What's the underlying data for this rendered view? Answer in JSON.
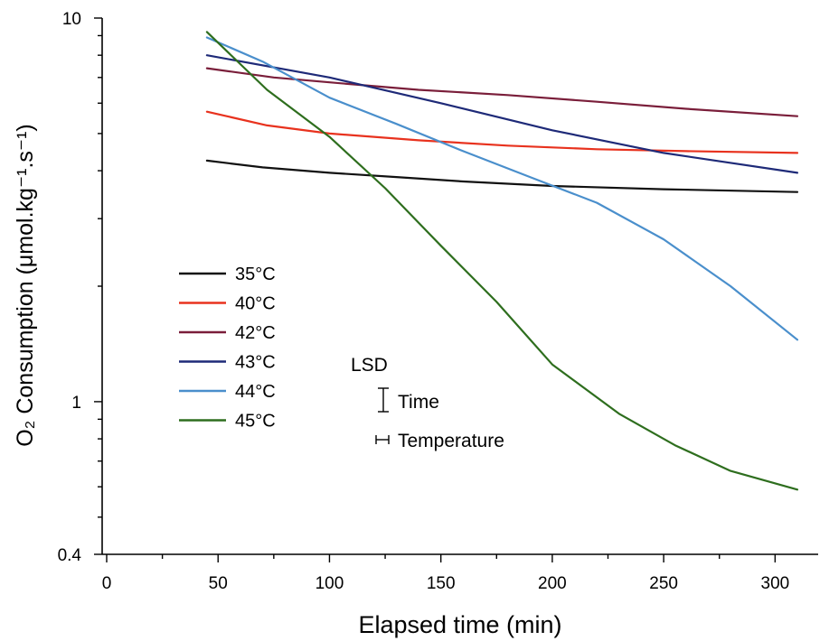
{
  "chart_data": {
    "type": "line",
    "xlabel": "Elapsed time (min)",
    "ylabel": "O₂ Consumption (μmol.kg⁻¹.s⁻¹)",
    "xlim": [
      0,
      320
    ],
    "ylim": [
      0.4,
      10
    ],
    "yscale": "log",
    "x_ticks": [
      0,
      50,
      100,
      150,
      200,
      250,
      300
    ],
    "y_ticks": [
      {
        "value": 0.4,
        "label": "0.4"
      },
      {
        "value": 1,
        "label": "1"
      },
      {
        "value": 10,
        "label": "10"
      }
    ],
    "legend_placement": "left-middle",
    "series": [
      {
        "name": "35°C",
        "color": "#111111",
        "points": [
          [
            45,
            4.25
          ],
          [
            70,
            4.08
          ],
          [
            100,
            3.95
          ],
          [
            130,
            3.85
          ],
          [
            160,
            3.75
          ],
          [
            200,
            3.65
          ],
          [
            250,
            3.58
          ],
          [
            310,
            3.52
          ]
        ]
      },
      {
        "name": "40°C",
        "color": "#e8321e",
        "points": [
          [
            45,
            5.7
          ],
          [
            72,
            5.25
          ],
          [
            100,
            5.0
          ],
          [
            140,
            4.8
          ],
          [
            180,
            4.65
          ],
          [
            220,
            4.55
          ],
          [
            260,
            4.5
          ],
          [
            310,
            4.45
          ]
        ]
      },
      {
        "name": "42°C",
        "color": "#7a1e3a",
        "points": [
          [
            45,
            7.4
          ],
          [
            75,
            7.0
          ],
          [
            100,
            6.8
          ],
          [
            140,
            6.5
          ],
          [
            180,
            6.3
          ],
          [
            220,
            6.05
          ],
          [
            260,
            5.8
          ],
          [
            310,
            5.55
          ]
        ]
      },
      {
        "name": "43°C",
        "color": "#1e2a78",
        "points": [
          [
            45,
            8.0
          ],
          [
            100,
            7.0
          ],
          [
            150,
            6.0
          ],
          [
            200,
            5.1
          ],
          [
            250,
            4.45
          ],
          [
            310,
            3.95
          ]
        ]
      },
      {
        "name": "44°C",
        "color": "#4a8fcc",
        "points": [
          [
            45,
            8.9
          ],
          [
            70,
            7.7
          ],
          [
            100,
            6.2
          ],
          [
            130,
            5.3
          ],
          [
            160,
            4.5
          ],
          [
            190,
            3.85
          ],
          [
            220,
            3.3
          ],
          [
            250,
            2.65
          ],
          [
            280,
            2.0
          ],
          [
            310,
            1.45
          ]
        ]
      },
      {
        "name": "45°C",
        "color": "#2e6e1e",
        "points": [
          [
            45,
            9.2
          ],
          [
            72,
            6.5
          ],
          [
            100,
            4.9
          ],
          [
            125,
            3.6
          ],
          [
            150,
            2.55
          ],
          [
            175,
            1.82
          ],
          [
            200,
            1.25
          ],
          [
            230,
            0.93
          ],
          [
            255,
            0.77
          ],
          [
            280,
            0.66
          ],
          [
            310,
            0.59
          ]
        ]
      }
    ],
    "lsd": {
      "title": "LSD",
      "time_label": "Time",
      "temperature_label": "Temperature"
    }
  }
}
